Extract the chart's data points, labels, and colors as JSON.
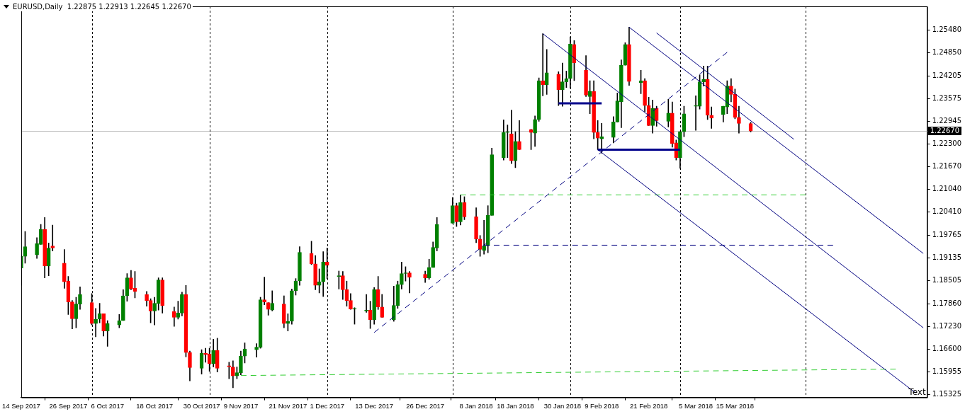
{
  "chart_data": {
    "type": "candlestick",
    "title": "EURUSD,Daily  1.22875 1.22913 1.22645 1.22670",
    "x": [
      "2017-09-14",
      "2017-09-15",
      "2017-09-18",
      "2017-09-19",
      "2017-09-20",
      "2017-09-21",
      "2017-09-22",
      "2017-09-25",
      "2017-09-26",
      "2017-09-27",
      "2017-09-28",
      "2017-09-29",
      "2017-10-02",
      "2017-10-03",
      "2017-10-04",
      "2017-10-05",
      "2017-10-06",
      "2017-10-09",
      "2017-10-10",
      "2017-10-11",
      "2017-10-12",
      "2017-10-13",
      "2017-10-16",
      "2017-10-17",
      "2017-10-18",
      "2017-10-19",
      "2017-10-20",
      "2017-10-23",
      "2017-10-24",
      "2017-10-25",
      "2017-10-26",
      "2017-10-27",
      "2017-10-30",
      "2017-10-31",
      "2017-11-01",
      "2017-11-02",
      "2017-11-03",
      "2017-11-06",
      "2017-11-07",
      "2017-11-08",
      "2017-11-09",
      "2017-11-10",
      "2017-11-13",
      "2017-11-14",
      "2017-11-15",
      "2017-11-16",
      "2017-11-17",
      "2017-11-20",
      "2017-11-21",
      "2017-11-22",
      "2017-11-23",
      "2017-11-24",
      "2017-11-27",
      "2017-11-28",
      "2017-11-29",
      "2017-11-30",
      "2017-12-01",
      "2017-12-04",
      "2017-12-05",
      "2017-12-06",
      "2017-12-07",
      "2017-12-08",
      "2017-12-11",
      "2017-12-12",
      "2017-12-13",
      "2017-12-14",
      "2017-12-15",
      "2017-12-18",
      "2017-12-19",
      "2017-12-20",
      "2017-12-21",
      "2017-12-22",
      "2017-12-26",
      "2017-12-27",
      "2017-12-28",
      "2017-12-29",
      "2018-01-02",
      "2018-01-03",
      "2018-01-04",
      "2018-01-05",
      "2018-01-08",
      "2018-01-09",
      "2018-01-10",
      "2018-01-11",
      "2018-01-12",
      "2018-01-15",
      "2018-01-16",
      "2018-01-17",
      "2018-01-18",
      "2018-01-19",
      "2018-01-22",
      "2018-01-23",
      "2018-01-24",
      "2018-01-25",
      "2018-01-26",
      "2018-01-29",
      "2018-01-30",
      "2018-01-31",
      "2018-02-01",
      "2018-02-02",
      "2018-02-05",
      "2018-02-06",
      "2018-02-07",
      "2018-02-08",
      "2018-02-09",
      "2018-02-12",
      "2018-02-13",
      "2018-02-14",
      "2018-02-15",
      "2018-02-16",
      "2018-02-19",
      "2018-02-20",
      "2018-02-21",
      "2018-02-22",
      "2018-02-23",
      "2018-02-26",
      "2018-02-27",
      "2018-02-28",
      "2018-03-01",
      "2018-03-02",
      "2018-03-05",
      "2018-03-06",
      "2018-03-07",
      "2018-03-08",
      "2018-03-09",
      "2018-03-12",
      "2018-03-13",
      "2018-03-14",
      "2018-03-15",
      "2018-03-16",
      "2018-03-19"
    ],
    "ohlc": [
      [
        1.1885,
        1.1922,
        1.1837,
        1.1918
      ],
      [
        1.1918,
        1.1987,
        1.1899,
        1.1945
      ],
      [
        1.1922,
        1.197,
        1.1912,
        1.1953
      ],
      [
        1.1951,
        1.2007,
        1.1951,
        1.1993
      ],
      [
        1.1993,
        1.2026,
        1.1858,
        1.1891
      ],
      [
        1.1891,
        1.1955,
        1.1864,
        1.1941
      ],
      [
        1.1947,
        1.2005,
        1.1933,
        1.1941
      ],
      [
        1.1899,
        1.1937,
        1.1829,
        1.1847
      ],
      [
        1.1849,
        1.1862,
        1.1756,
        1.1791
      ],
      [
        1.1791,
        1.1795,
        1.1716,
        1.1744
      ],
      [
        1.1744,
        1.1804,
        1.1719,
        1.1785
      ],
      [
        1.1785,
        1.1833,
        1.177,
        1.1812
      ],
      [
        1.1789,
        1.1814,
        1.1727,
        1.1731
      ],
      [
        1.1731,
        1.1773,
        1.1694,
        1.1743
      ],
      [
        1.1743,
        1.1787,
        1.1733,
        1.1758
      ],
      [
        1.1758,
        1.1758,
        1.1696,
        1.171
      ],
      [
        1.171,
        1.1739,
        1.1667,
        1.1731
      ],
      [
        1.1727,
        1.1756,
        1.1719,
        1.1739
      ],
      [
        1.1739,
        1.1825,
        1.1739,
        1.1808
      ],
      [
        1.1808,
        1.187,
        1.1793,
        1.1858
      ],
      [
        1.1858,
        1.1879,
        1.1825,
        1.1827
      ],
      [
        1.1829,
        1.1876,
        1.1802,
        1.182
      ],
      [
        1.1812,
        1.182,
        1.1779,
        1.1795
      ],
      [
        1.1795,
        1.18,
        1.1733,
        1.1766
      ],
      [
        1.1766,
        1.1804,
        1.1727,
        1.1787
      ],
      [
        1.1787,
        1.1858,
        1.1768,
        1.1852
      ],
      [
        1.1852,
        1.1858,
        1.176,
        1.1781
      ],
      [
        1.1764,
        1.1777,
        1.1723,
        1.1748
      ],
      [
        1.1748,
        1.1793,
        1.1743,
        1.176
      ],
      [
        1.176,
        1.1818,
        1.1752,
        1.1812
      ],
      [
        1.1812,
        1.1837,
        1.1638,
        1.165
      ],
      [
        1.165,
        1.1654,
        1.1571,
        1.1608
      ],
      [
        1.1606,
        1.1658,
        1.159,
        1.1648
      ],
      [
        1.1648,
        1.1662,
        1.1623,
        1.1644
      ],
      [
        1.1646,
        1.1662,
        1.1598,
        1.1619
      ],
      [
        1.1619,
        1.1687,
        1.161,
        1.1656
      ],
      [
        1.1656,
        1.169,
        1.1596,
        1.1606
      ],
      [
        1.1613,
        1.1623,
        1.1577,
        1.161
      ],
      [
        1.161,
        1.1627,
        1.1552,
        1.1585
      ],
      [
        1.1585,
        1.161,
        1.1577,
        1.1594
      ],
      [
        1.1594,
        1.1654,
        1.1588,
        1.164
      ],
      [
        1.164,
        1.1677,
        1.1621,
        1.166
      ],
      [
        1.1658,
        1.1675,
        1.1637,
        1.1665
      ],
      [
        1.1665,
        1.1804,
        1.1662,
        1.1797
      ],
      [
        1.1797,
        1.186,
        1.1783,
        1.1791
      ],
      [
        1.1789,
        1.1789,
        1.1754,
        1.177
      ],
      [
        1.1768,
        1.1822,
        1.1766,
        1.1787
      ],
      [
        1.1785,
        1.1808,
        1.1719,
        1.1731
      ],
      [
        1.1731,
        1.1758,
        1.171,
        1.1737
      ],
      [
        1.1737,
        1.1827,
        1.1729,
        1.1822
      ],
      [
        1.1822,
        1.1856,
        1.181,
        1.1849
      ],
      [
        1.185,
        1.1945,
        1.1837,
        1.1929
      ],
      [
        1.1926,
        1.196,
        1.1895,
        1.1897
      ],
      [
        1.1897,
        1.192,
        1.1825,
        1.1837
      ],
      [
        1.1837,
        1.1883,
        1.1816,
        1.1847
      ],
      [
        1.1847,
        1.1931,
        1.1806,
        1.1902
      ],
      [
        1.1902,
        1.1941,
        1.1856,
        1.1893
      ],
      [
        1.1862,
        1.1877,
        1.1827,
        1.1862
      ],
      [
        1.1864,
        1.1876,
        1.1798,
        1.1825
      ],
      [
        1.1825,
        1.1849,
        1.1779,
        1.1795
      ],
      [
        1.1795,
        1.1814,
        1.177,
        1.1771
      ],
      [
        1.1771,
        1.1775,
        1.1729,
        1.1771
      ],
      [
        1.1766,
        1.1812,
        1.1762,
        1.1766
      ],
      [
        1.1768,
        1.1793,
        1.1717,
        1.1741
      ],
      [
        1.1741,
        1.1831,
        1.1729,
        1.1825
      ],
      [
        1.1825,
        1.1862,
        1.177,
        1.1777
      ],
      [
        1.1777,
        1.1812,
        1.1748,
        1.1748
      ],
      [
        1.1741,
        1.1835,
        1.1737,
        1.1781
      ],
      [
        1.1781,
        1.1849,
        1.1773,
        1.1839
      ],
      [
        1.1839,
        1.1902,
        1.1827,
        1.187
      ],
      [
        1.187,
        1.1889,
        1.1849,
        1.187
      ],
      [
        1.1872,
        1.1876,
        1.1816,
        1.186
      ],
      [
        1.1868,
        1.1877,
        1.1845,
        1.1858
      ],
      [
        1.1858,
        1.191,
        1.1854,
        1.1887
      ],
      [
        1.1887,
        1.1958,
        1.1887,
        1.1943
      ],
      [
        1.1941,
        1.2026,
        1.1933,
        1.2007
      ],
      [
        1.201,
        1.2082,
        1.201,
        1.2059
      ],
      [
        1.2059,
        1.2066,
        1.2001,
        1.2014
      ],
      [
        1.2014,
        1.2089,
        1.2005,
        1.2068
      ],
      [
        1.2068,
        1.2084,
        1.202,
        1.2028
      ],
      [
        1.2028,
        1.2053,
        1.1956,
        1.1966
      ],
      [
        1.1966,
        1.1976,
        1.1918,
        1.1937
      ],
      [
        1.1935,
        1.2018,
        1.1924,
        1.1947
      ],
      [
        1.1947,
        1.2059,
        1.1928,
        1.2032
      ],
      [
        1.2032,
        1.2219,
        1.2032,
        1.2201
      ],
      [
        1.2193,
        1.2298,
        1.2186,
        1.2263
      ],
      [
        1.2263,
        1.2284,
        1.2193,
        1.2263
      ],
      [
        1.2259,
        1.2325,
        1.2176,
        1.2184
      ],
      [
        1.2184,
        1.2265,
        1.2165,
        1.2238
      ],
      [
        1.2238,
        1.2296,
        1.2215,
        1.2215
      ],
      [
        1.2271,
        1.2272,
        1.2215,
        1.2263
      ],
      [
        1.2261,
        1.2309,
        1.2224,
        1.2299
      ],
      [
        1.2299,
        1.2415,
        1.2294,
        1.2407
      ],
      [
        1.2407,
        1.2538,
        1.2365,
        1.2396
      ],
      [
        1.2396,
        1.2494,
        1.2369,
        1.2429
      ],
      [
        1.2425,
        1.2432,
        1.2338,
        1.2382
      ],
      [
        1.2382,
        1.2456,
        1.2336,
        1.2404
      ],
      [
        1.2404,
        1.2434,
        1.2388,
        1.2413
      ],
      [
        1.2413,
        1.2529,
        1.2386,
        1.2509
      ],
      [
        1.2508,
        1.2519,
        1.2407,
        1.2457
      ],
      [
        1.2436,
        1.2477,
        1.2363,
        1.2367
      ],
      [
        1.2363,
        1.2407,
        1.2315,
        1.2378
      ],
      [
        1.2377,
        1.2407,
        1.2245,
        1.2263
      ],
      [
        1.2263,
        1.2296,
        1.2215,
        1.2247
      ],
      [
        1.2245,
        1.2288,
        1.2205,
        1.2251
      ],
      [
        1.2249,
        1.2307,
        1.2234,
        1.2292
      ],
      [
        1.2292,
        1.2373,
        1.2292,
        1.2351
      ],
      [
        1.2348,
        1.2465,
        1.2276,
        1.245
      ],
      [
        1.245,
        1.2513,
        1.245,
        1.2508
      ],
      [
        1.2508,
        1.2556,
        1.2394,
        1.2405
      ],
      [
        1.2402,
        1.2436,
        1.2371,
        1.2407
      ],
      [
        1.2407,
        1.2413,
        1.2321,
        1.2338
      ],
      [
        1.2338,
        1.2361,
        1.2282,
        1.2282
      ],
      [
        1.2282,
        1.2353,
        1.2261,
        1.233
      ],
      [
        1.233,
        1.2336,
        1.228,
        1.2296
      ],
      [
        1.2294,
        1.2355,
        1.2278,
        1.2317
      ],
      [
        1.2317,
        1.2348,
        1.2222,
        1.2232
      ],
      [
        1.2234,
        1.2242,
        1.2186,
        1.2193
      ],
      [
        1.2193,
        1.2265,
        1.2163,
        1.2265
      ],
      [
        1.2265,
        1.2336,
        1.2251,
        1.2315
      ],
      [
        1.2336,
        1.2365,
        1.2269,
        1.2336
      ],
      [
        1.2336,
        1.2423,
        1.2328,
        1.2404
      ],
      [
        1.2404,
        1.2448,
        1.2392,
        1.2411
      ],
      [
        1.2411,
        1.2448,
        1.2299,
        1.2311
      ],
      [
        1.2311,
        1.2334,
        1.2274,
        1.2303
      ],
      [
        1.2313,
        1.2336,
        1.2292,
        1.2336
      ],
      [
        1.2334,
        1.2407,
        1.2315,
        1.2392
      ],
      [
        1.2392,
        1.2413,
        1.2348,
        1.2369
      ],
      [
        1.2369,
        1.2384,
        1.2301,
        1.2305
      ],
      [
        1.2305,
        1.2336,
        1.2261,
        1.2288
      ],
      [
        1.22875,
        1.22913,
        1.22645,
        1.2267
      ]
    ],
    "colors": [
      "#008000",
      "#008000",
      "#008000",
      "#008000",
      "#ff0000",
      "#008000",
      "#ff0000",
      "#ff0000",
      "#ff0000",
      "#ff0000",
      "#008000",
      "#008000",
      "#ff0000",
      "#008000",
      "#008000",
      "#ff0000",
      "#008000",
      "#008000",
      "#008000",
      "#008000",
      "#ff0000",
      "#ff0000",
      "#ff0000",
      "#ff0000",
      "#008000",
      "#008000",
      "#ff0000",
      "#ff0000",
      "#008000",
      "#008000",
      "#ff0000",
      "#ff0000",
      "#008000",
      "#ff0000",
      "#ff0000",
      "#008000",
      "#ff0000",
      "#ff0000",
      "#ff0000",
      "#008000",
      "#008000",
      "#008000",
      "#008000",
      "#008000",
      "#ff0000",
      "#ff0000",
      "#008000",
      "#ff0000",
      "#008000",
      "#008000",
      "#008000",
      "#008000",
      "#ff0000",
      "#ff0000",
      "#008000",
      "#008000",
      "#ff0000",
      "#008000",
      "#ff0000",
      "#ff0000",
      "#ff0000",
      "#008000",
      "#008000",
      "#ff0000",
      "#008000",
      "#ff0000",
      "#ff0000",
      "#008000",
      "#008000",
      "#008000",
      "#008000",
      "#ff0000",
      "#ff0000",
      "#008000",
      "#008000",
      "#008000",
      "#008000",
      "#ff0000",
      "#008000",
      "#ff0000",
      "#ff0000",
      "#ff0000",
      "#008000",
      "#008000",
      "#008000",
      "#008000",
      "#008000",
      "#ff0000",
      "#008000",
      "#ff0000",
      "#ff0000",
      "#008000",
      "#008000",
      "#ff0000",
      "#008000",
      "#ff0000",
      "#008000",
      "#008000",
      "#008000",
      "#ff0000",
      "#ff0000",
      "#008000",
      "#ff0000",
      "#ff0000",
      "#008000",
      "#008000",
      "#008000",
      "#008000",
      "#008000",
      "#ff0000",
      "#008000",
      "#ff0000",
      "#ff0000",
      "#008000",
      "#ff0000",
      "#008000",
      "#ff0000",
      "#ff0000",
      "#008000",
      "#008000",
      "#008000",
      "#008000",
      "#008000",
      "#ff0000",
      "#ff0000",
      "#008000",
      "#008000",
      "#ff0000",
      "#ff0000",
      "#ff0000",
      "#ff0000"
    ],
    "series": [
      {
        "type": "line",
        "x": [
          "2018-01-25",
          "2018-05-02"
        ],
        "values": [
          1.2538,
          1.1719
        ],
        "color": "#000080",
        "line_style": "solid"
      },
      {
        "type": "line",
        "x": [
          "2018-02-16",
          "2018-05-02"
        ],
        "values": [
          1.2556,
          1.1926
        ],
        "color": "#000080",
        "line_style": "solid"
      },
      {
        "type": "line",
        "x": [
          "2018-02-08",
          "2018-04-30"
        ],
        "values": [
          1.2215,
          1.1538
        ],
        "color": "#000080",
        "line_style": "solid"
      },
      {
        "type": "line",
        "x": [
          "2018-02-23",
          "2018-03-30"
        ],
        "values": [
          1.254,
          1.2244
        ],
        "color": "#000080",
        "line_style": "solid"
      },
      {
        "type": "line",
        "x": [
          "2017-12-13",
          "2018-03-13"
        ],
        "values": [
          1.1706,
          1.2486
        ],
        "color": "#000080",
        "line_style": "dashed"
      },
      {
        "type": "line",
        "x": [
          "2018-01-29",
          "2018-02-09"
        ],
        "values": [
          1.2344,
          1.2344
        ],
        "color": "#00008b",
        "line_style": "solid"
      },
      {
        "type": "line",
        "x": [
          "2018-02-08",
          "2018-03-01"
        ],
        "values": [
          1.2215,
          1.2215
        ],
        "color": "#00008b",
        "line_style": "solid"
      },
      {
        "type": "line",
        "x": [
          "2018-01-10",
          "2018-04-09"
        ],
        "values": [
          1.1949,
          1.1949
        ],
        "color": "#000080",
        "line_style": "dashed"
      },
      {
        "type": "line",
        "x": [
          "2018-01-04",
          "2018-04-02"
        ],
        "values": [
          1.2089,
          1.2089
        ],
        "color": "#32cd32",
        "line_style": "dashed"
      },
      {
        "type": "line",
        "x": [
          "2017-11-09",
          "2018-04-25"
        ],
        "values": [
          1.1586,
          1.1604
        ],
        "color": "#32cd32",
        "line_style": "dashed"
      }
    ],
    "xlim": [
      "2017-09-14",
      "2018-05-03"
    ],
    "xticks": [
      {
        "value": "2017-09-14",
        "label": "14 Sep 2017"
      },
      {
        "value": "2017-09-26",
        "label": "26 Sep 2017"
      },
      {
        "value": "2017-10-06",
        "label": "6 Oct 2017"
      },
      {
        "value": "2017-10-18",
        "label": "18 Oct 2017"
      },
      {
        "value": "2017-10-30",
        "label": "30 Oct 2017"
      },
      {
        "value": "2017-11-09",
        "label": "9 Nov 2017"
      },
      {
        "value": "2017-11-21",
        "label": "21 Nov 2017"
      },
      {
        "value": "2017-12-01",
        "label": "1 Dec 2017"
      },
      {
        "value": "2017-12-13",
        "label": "13 Dec 2017"
      },
      {
        "value": "2017-12-26",
        "label": "26 Dec 2017"
      },
      {
        "value": "2018-01-08",
        "label": "8 Jan 2018"
      },
      {
        "value": "2018-01-18",
        "label": "18 Jan 2018"
      },
      {
        "value": "2018-01-30",
        "label": "30 Jan 2018"
      },
      {
        "value": "2018-02-09",
        "label": "9 Feb 2018"
      },
      {
        "value": "2018-02-21",
        "label": "21 Feb 2018"
      },
      {
        "value": "2018-03-05",
        "label": "5 Mar 2018"
      },
      {
        "value": "2018-03-15",
        "label": "15 Mar 2018"
      }
    ],
    "ylim": [
      1.1525,
      1.2614
    ],
    "yticks": [
      {
        "value": 1.15325,
        "label": "1.15325"
      },
      {
        "value": 1.15955,
        "label": "1.15955"
      },
      {
        "value": 1.166,
        "label": "1.16600"
      },
      {
        "value": 1.1723,
        "label": "1.17230"
      },
      {
        "value": 1.1786,
        "label": "1.17860"
      },
      {
        "value": 1.18505,
        "label": "1.18505"
      },
      {
        "value": 1.19135,
        "label": "1.19135"
      },
      {
        "value": 1.19765,
        "label": "1.19765"
      },
      {
        "value": 1.2041,
        "label": "1.20410"
      },
      {
        "value": 1.2104,
        "label": "1.21040"
      },
      {
        "value": 1.2167,
        "label": "1.21670"
      },
      {
        "value": 1.223,
        "label": "1.22300"
      },
      {
        "value": 1.22945,
        "label": "1.22945"
      },
      {
        "value": 1.23575,
        "label": "1.23575"
      },
      {
        "value": 1.24205,
        "label": "1.24205"
      },
      {
        "value": 1.2485,
        "label": "1.24850"
      },
      {
        "value": 1.2548,
        "label": "1.25480"
      }
    ],
    "ref_lines": [
      {
        "axis": "y",
        "value": 1.2267,
        "label": "1.22670",
        "color": "#c0c0c0",
        "line_style": "solid"
      },
      {
        "axis": "x",
        "value": "2017-10-02",
        "color": "#000000",
        "line_style": "dashed"
      },
      {
        "axis": "x",
        "value": "2017-11-01",
        "color": "#000000",
        "line_style": "dashed"
      },
      {
        "axis": "x",
        "value": "2017-12-01",
        "color": "#000000",
        "line_style": "dashed"
      },
      {
        "axis": "x",
        "value": "2018-01-02",
        "color": "#000000",
        "line_style": "dashed"
      },
      {
        "axis": "x",
        "value": "2018-02-01",
        "color": "#000000",
        "line_style": "dashed"
      },
      {
        "axis": "x",
        "value": "2018-03-01",
        "color": "#000000",
        "line_style": "dashed"
      },
      {
        "axis": "x",
        "value": "2018-04-02",
        "color": "#000000",
        "line_style": "dashed"
      }
    ],
    "annotations": [
      "Text"
    ],
    "grid": false,
    "legend": false
  }
}
